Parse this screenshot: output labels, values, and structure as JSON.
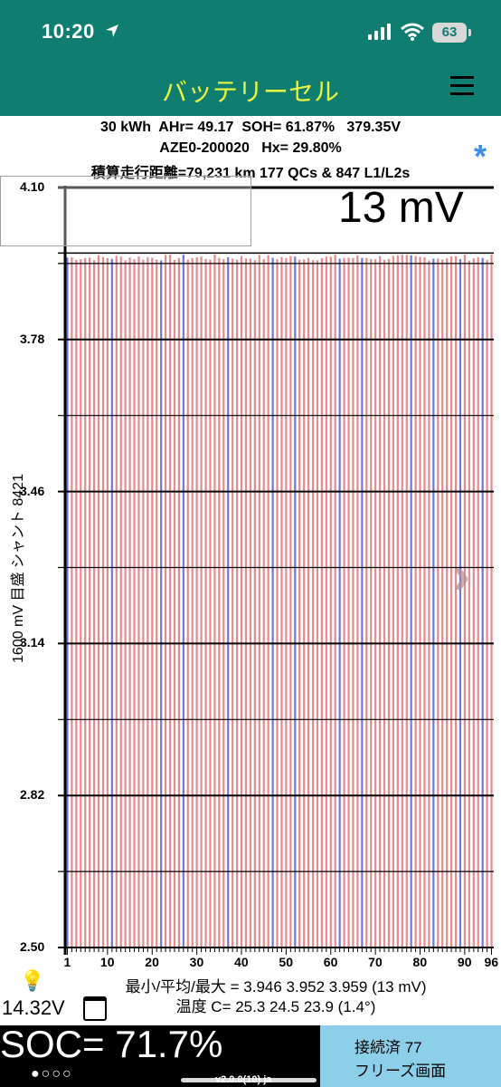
{
  "status_bar": {
    "time": "10:20",
    "battery": "63"
  },
  "app_bar": {
    "title": "バッテリーセル"
  },
  "info": {
    "line1": "30 kWh  AHr= 49.17  SOH= 61.87%   379.35V",
    "line2": "AZE0-200020   Hx= 29.80%",
    "line3": "積算走行距離=79,231 km 177 QCs & 847 L1/L2s"
  },
  "delta_mv": "13 mV",
  "y_axis_label": "1600 mV 目盛  シャント 8421",
  "chart_data": {
    "type": "bar",
    "cell_count": 96,
    "ylim": [
      2.5,
      4.1
    ],
    "y_ticks": [
      "4.10",
      "3.78",
      "3.46",
      "3.14",
      "2.82",
      "2.50"
    ],
    "x_ticks": [
      "1",
      "10",
      "20",
      "30",
      "40",
      "50",
      "60",
      "70",
      "80",
      "90",
      "96"
    ],
    "cell_min": 3.946,
    "cell_avg": 3.952,
    "cell_max": 3.959,
    "shunt_cells": [
      1,
      11,
      22,
      27,
      37,
      47,
      52,
      62,
      67,
      78,
      83,
      89,
      94
    ],
    "colors": {
      "cell": "#e8898c",
      "shunt": "#6f76e0"
    }
  },
  "stats": {
    "minmax": "最小/平均/最大 = 3.946 3.952 3.959  (13 mV)",
    "temp": "温度 C= 25.3  24.5  23.9  (1.4°)"
  },
  "aux_voltage": "14.32V",
  "soc": "SOC= 71.7%",
  "page_dots": "●○○○",
  "version": "v2.0.0(10) ja",
  "connection": "接続済 77",
  "freeze": "フリーズ画面"
}
